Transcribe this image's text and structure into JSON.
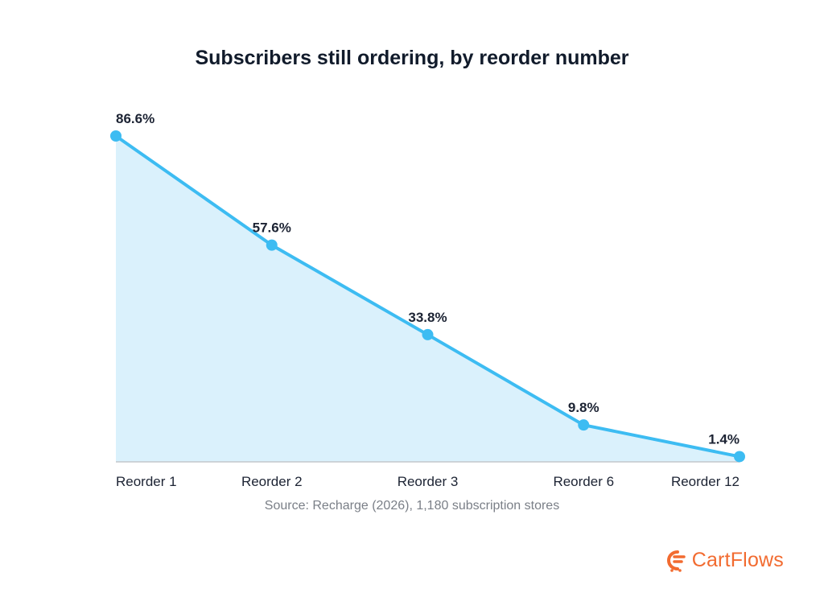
{
  "chart_data": {
    "type": "area",
    "title": "Subscribers still ordering, by reorder number",
    "categories": [
      "Reorder 1",
      "Reorder 2",
      "Reorder 3",
      "Reorder 6",
      "Reorder 12"
    ],
    "values": [
      86.6,
      57.6,
      33.8,
      9.8,
      1.4
    ],
    "data_labels": [
      "86.6%",
      "57.6%",
      "33.8%",
      "9.8%",
      "1.4%"
    ],
    "xlabel": "",
    "ylabel": "",
    "ylim": [
      0,
      86.6
    ],
    "grid": false,
    "legend": "none",
    "colors": {
      "line": "#3dbcf2",
      "fill": "#daf1fc",
      "axis": "#c3c7cc"
    }
  },
  "source": "Source: Recharge (2026), 1,180 subscription stores",
  "brand": {
    "name": "CartFlows",
    "icon": "cartflows-logo-icon",
    "color": "#f26b30"
  }
}
